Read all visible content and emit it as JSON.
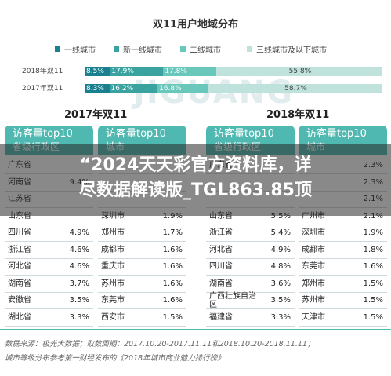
{
  "chart_data": [
    {
      "type": "bar",
      "title": "双11用户地域分布",
      "stacked": true,
      "orientation": "horizontal",
      "categories": [
        "2018年双11",
        "2017年双11"
      ],
      "series": [
        {
          "name": "一线城市",
          "color": "#1a7f8e",
          "values": [
            8.5,
            8.3
          ]
        },
        {
          "name": "新一线城市",
          "color": "#3aa3a0",
          "values": [
            17.9,
            16.2
          ]
        },
        {
          "name": "二线城市",
          "color": "#6ac7bb",
          "values": [
            17.8,
            16.8
          ]
        },
        {
          "name": "三线城市及以下城市",
          "color": "#bfe2dc",
          "values": [
            55.8,
            58.7
          ]
        }
      ],
      "value_labels": [
        [
          "8.5%",
          "17.9%",
          "17.8%",
          "55.8%"
        ],
        [
          "8.3%",
          "16.2%",
          "16.8%",
          "58.7%"
        ]
      ],
      "xlim": [
        0,
        100
      ]
    },
    {
      "type": "table",
      "title": "2017年双11",
      "tables": [
        {
          "header": "访客量top10",
          "subheader": "省级行政区",
          "rows": [
            [
              "广东省",
              ""
            ],
            [
              "河南省",
              "9.4%"
            ],
            [
              "江苏省",
              ""
            ],
            [
              "山东省",
              ""
            ],
            [
              "四川省",
              "4.9%"
            ],
            [
              "浙江省",
              "4.6%"
            ],
            [
              "河北省",
              "4.6%"
            ],
            [
              "湖南省",
              "3.7%"
            ],
            [
              "安徽省",
              "3.5%"
            ],
            [
              "湖北省",
              "3.3%"
            ]
          ]
        },
        {
          "header": "访客量top10",
          "subheader": "城市",
          "rows": [
            [
              "",
              ""
            ],
            [
              "",
              ""
            ],
            [
              "",
              ""
            ],
            [
              "深圳市",
              "1.9%"
            ],
            [
              "郑州市",
              "1.7%"
            ],
            [
              "成都市",
              "1.6%"
            ],
            [
              "重庆市",
              "1.6%"
            ],
            [
              "苏州市",
              "1.6%"
            ],
            [
              "东莞市",
              "1.6%"
            ],
            [
              "西安市",
              "1.5%"
            ]
          ]
        }
      ]
    },
    {
      "type": "table",
      "title": "2018年双11",
      "tables": [
        {
          "header": "访客量top10",
          "subheader": "省级行政区",
          "rows": [
            [
              "广东省",
              ""
            ],
            [
              "",
              ""
            ],
            [
              "",
              ""
            ],
            [
              "山东省",
              "5.5%"
            ],
            [
              "浙江省",
              "5.4%"
            ],
            [
              "河北省",
              "4.9%"
            ],
            [
              "四川省",
              "4.8%"
            ],
            [
              "湖南省",
              "3.6%"
            ],
            [
              "广西壮族自治区",
              "3.5%"
            ],
            [
              "福建省",
              "3.3%"
            ]
          ]
        },
        {
          "header": "访客量top10",
          "subheader": "城市",
          "rows": [
            [
              "",
              "2.3%"
            ],
            [
              "",
              "2.3%"
            ],
            [
              "",
              "2.1%"
            ],
            [
              "广州市",
              "2.1%"
            ],
            [
              "深圳市",
              "1.9%"
            ],
            [
              "成都市",
              "1.8%"
            ],
            [
              "东莞市",
              "1.6%"
            ],
            [
              "郑州市",
              "1.5%"
            ],
            [
              "苏州市",
              "1.5%"
            ],
            [
              "天津市",
              "1.5%"
            ]
          ]
        }
      ]
    }
  ],
  "overlay": {
    "banner_line1": "“2024天天彩官方资料库，详",
    "banner_line2": "尽数据解读版_TGL863.85顶"
  },
  "watermark": "JIGUANG",
  "footnotes": {
    "line1": "数据来源：极光大数据；取数周期：2017.10.20-2017.11.11和2018.10.20-2018.11.11；",
    "line2": "城市等级分布参考第一财经发布的《2018年城市商业魅力排行榜》"
  }
}
